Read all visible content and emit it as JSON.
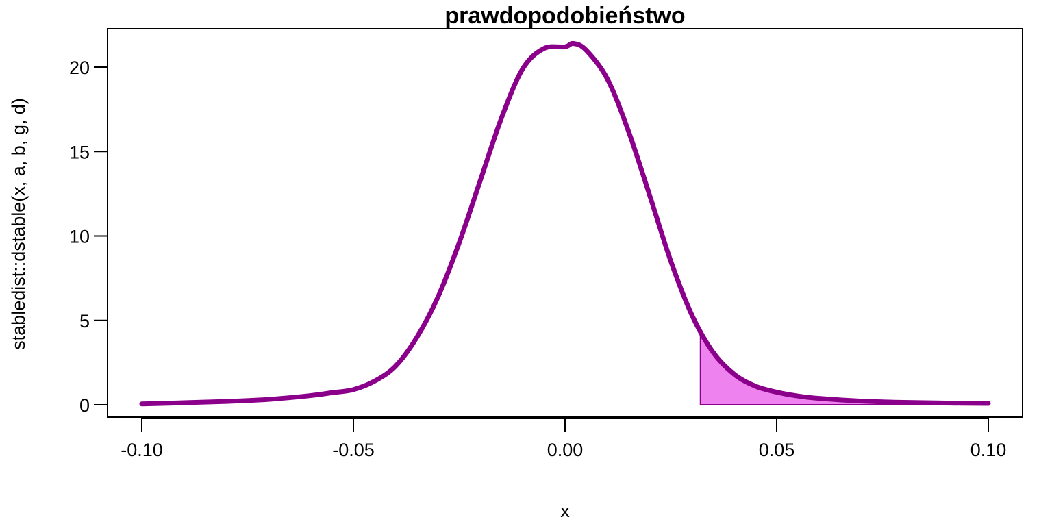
{
  "chart_data": {
    "type": "line",
    "title": "prawdopodobieństwo",
    "xlabel": "x",
    "ylabel": "stabledist::dstable(x, a, b, g, d)",
    "xlim": [
      -0.1,
      0.1
    ],
    "ylim": [
      0,
      22
    ],
    "x_ticks": [
      -0.1,
      -0.05,
      0.0,
      0.05,
      0.1
    ],
    "x_tick_labels": [
      "-0.10",
      "-0.05",
      "0.00",
      "0.05",
      "0.10"
    ],
    "y_ticks": [
      0,
      5,
      10,
      15,
      20
    ],
    "y_tick_labels": [
      "0",
      "5",
      "10",
      "15",
      "20"
    ],
    "grid": false,
    "series": [
      {
        "color": "#8B008B",
        "x": [
          -0.1,
          -0.09,
          -0.08,
          -0.07,
          -0.06,
          -0.055,
          -0.05,
          -0.045,
          -0.04,
          -0.035,
          -0.03,
          -0.025,
          -0.02,
          -0.015,
          -0.01,
          -0.005,
          0.0,
          0.002,
          0.005,
          0.01,
          0.015,
          0.02,
          0.025,
          0.03,
          0.035,
          0.04,
          0.045,
          0.05,
          0.055,
          0.06,
          0.07,
          0.08,
          0.09,
          0.1
        ],
        "y": [
          0.05,
          0.12,
          0.2,
          0.32,
          0.55,
          0.72,
          0.9,
          1.4,
          2.3,
          4.0,
          6.4,
          9.6,
          13.3,
          17.0,
          19.9,
          21.1,
          21.2,
          21.4,
          21.0,
          19.3,
          16.2,
          12.4,
          8.5,
          5.3,
          3.1,
          1.8,
          1.1,
          0.75,
          0.52,
          0.38,
          0.22,
          0.14,
          0.1,
          0.08
        ]
      }
    ],
    "shaded_region": {
      "x_from": 0.032,
      "x_to": 0.1,
      "fill_color": "#EE82EE",
      "edge_color": "#8B008B"
    }
  }
}
